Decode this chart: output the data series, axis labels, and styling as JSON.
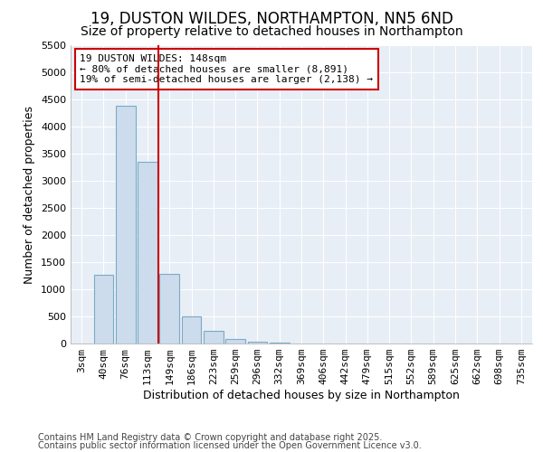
{
  "title": "19, DUSTON WILDES, NORTHAMPTON, NN5 6ND",
  "subtitle": "Size of property relative to detached houses in Northampton",
  "xlabel": "Distribution of detached houses by size in Northampton",
  "ylabel": "Number of detached properties",
  "categories": [
    "3sqm",
    "40sqm",
    "76sqm",
    "113sqm",
    "149sqm",
    "186sqm",
    "223sqm",
    "259sqm",
    "296sqm",
    "332sqm",
    "369sqm",
    "406sqm",
    "442sqm",
    "479sqm",
    "515sqm",
    "552sqm",
    "589sqm",
    "625sqm",
    "662sqm",
    "698sqm",
    "735sqm"
  ],
  "bar_values": [
    0,
    1270,
    4380,
    3350,
    1280,
    500,
    230,
    80,
    30,
    10,
    0,
    0,
    0,
    0,
    0,
    0,
    0,
    0,
    0,
    0,
    0
  ],
  "bar_color": "#ccdcec",
  "bar_edge_color": "#7aaac8",
  "vline_index": 4,
  "vline_color": "#cc0000",
  "annotation_text": "19 DUSTON WILDES: 148sqm\n← 80% of detached houses are smaller (8,891)\n19% of semi-detached houses are larger (2,138) →",
  "annotation_box_facecolor": "#ffffff",
  "annotation_box_edgecolor": "#cc0000",
  "ylim": [
    0,
    5500
  ],
  "yticks": [
    0,
    500,
    1000,
    1500,
    2000,
    2500,
    3000,
    3500,
    4000,
    4500,
    5000,
    5500
  ],
  "footer1": "Contains HM Land Registry data © Crown copyright and database right 2025.",
  "footer2": "Contains public sector information licensed under the Open Government Licence v3.0.",
  "bg_color": "#ffffff",
  "plot_bg_color": "#e8eef5",
  "grid_color": "#ffffff",
  "title_fontsize": 12,
  "subtitle_fontsize": 10,
  "axis_label_fontsize": 9,
  "tick_fontsize": 8,
  "annotation_fontsize": 8,
  "footer_fontsize": 7
}
